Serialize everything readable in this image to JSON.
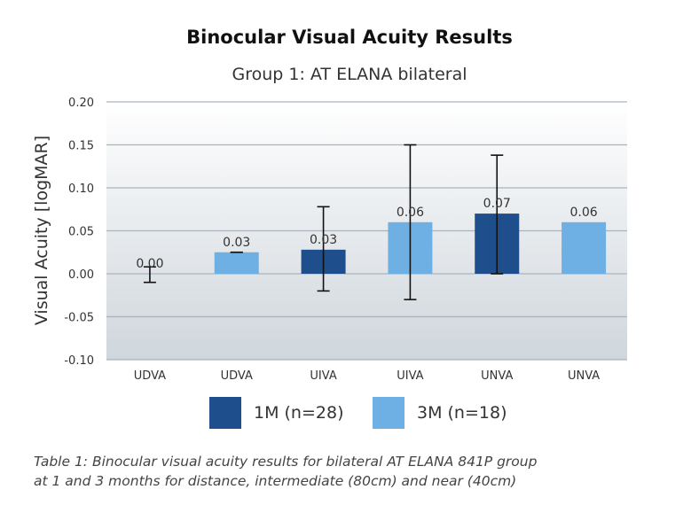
{
  "chart_data": {
    "type": "bar",
    "title": "Binocular Visual Acuity Results",
    "subtitle": "Group 1: AT ELANA bilateral",
    "ylabel": "Visual Acuity [logMAR]",
    "xlabel": "",
    "ylim": [
      -0.1,
      0.2
    ],
    "yticks": [
      "0.20",
      "0.15",
      "0.10",
      "0.05",
      "0.00",
      "-0.05",
      "-0.10"
    ],
    "ytick_values": [
      0.2,
      0.15,
      0.1,
      0.05,
      0.0,
      -0.05,
      -0.1
    ],
    "grid": true,
    "legend_position": "bottom",
    "categories": [
      "UDVA",
      "UDVA",
      "UIVA",
      "UIVA",
      "UNVA",
      "UNVA"
    ],
    "bars": [
      {
        "category": "UDVA",
        "series": "1M (n=28)",
        "value": 0.0,
        "label": "0.00",
        "err_low": -0.01,
        "err_high": 0.008
      },
      {
        "category": "UDVA",
        "series": "3M (n=18)",
        "value": 0.025,
        "label": "0.03",
        "err_low": 0.025,
        "err_high": 0.025
      },
      {
        "category": "UIVA",
        "series": "1M (n=28)",
        "value": 0.028,
        "label": "0.03",
        "err_low": -0.02,
        "err_high": 0.078
      },
      {
        "category": "UIVA",
        "series": "3M (n=18)",
        "value": 0.06,
        "label": "0.06",
        "err_low": -0.03,
        "err_high": 0.15
      },
      {
        "category": "UNVA",
        "series": "1M (n=28)",
        "value": 0.07,
        "label": "0.07",
        "err_low": 0.0,
        "err_high": 0.138
      },
      {
        "category": "UNVA",
        "series": "3M (n=18)",
        "value": 0.06,
        "label": "0.06",
        "err_low": null,
        "err_high": null
      }
    ],
    "series": [
      {
        "name": "1M (n=28)",
        "color": "#1f4e8c"
      },
      {
        "name": "3M (n=18)",
        "color": "#6fb0e4"
      }
    ]
  },
  "caption": {
    "line1": "Table 1: Binocular visual acuity results for bilateral AT ELANA 841P group",
    "line2": "at 1 and 3 months for distance, intermediate (80cm) and near (40cm)"
  },
  "colors": {
    "plot_bg_top": "#ffffff",
    "plot_bg_bottom": "#cfd6dc",
    "grid": "#a9b3bd",
    "dark_blue": "#1f4e8c",
    "light_blue": "#6fb0e4",
    "error_bar": "#111111"
  }
}
